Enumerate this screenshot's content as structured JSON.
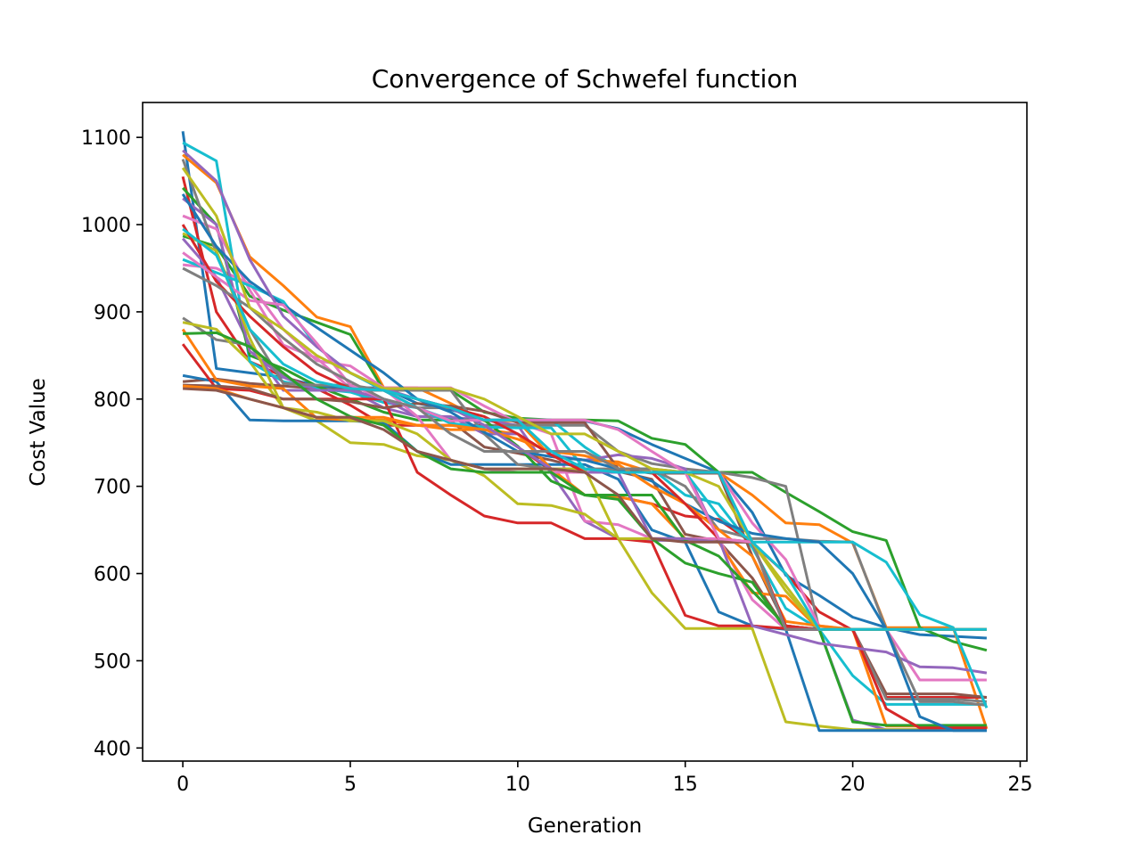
{
  "chart_data": {
    "type": "line",
    "title": "Convergence of Schwefel function",
    "xlabel": "Generation",
    "ylabel": "Cost Value",
    "xlim": [
      -1.2,
      25.2
    ],
    "ylim": [
      385,
      1140
    ],
    "xticks": [
      0,
      5,
      10,
      15,
      20,
      25
    ],
    "yticks": [
      400,
      500,
      600,
      700,
      800,
      900,
      1000,
      1100
    ],
    "grid": false,
    "legend": "none",
    "x": [
      0,
      1,
      2,
      3,
      4,
      5,
      6,
      7,
      8,
      9,
      10,
      11,
      12,
      13,
      14,
      15,
      16,
      17,
      18,
      19,
      20,
      21,
      22,
      23,
      24
    ],
    "palette": [
      "#1f77b4",
      "#ff7f0e",
      "#2ca02c",
      "#d62728",
      "#9467bd",
      "#8c564b",
      "#e377c2",
      "#7f7f7f",
      "#bcbd22",
      "#17becf"
    ],
    "series": [
      {
        "values": [
          1107,
          835,
          830,
          825,
          815,
          813,
          813,
          795,
          788,
          776,
          776,
          775,
          775,
          766,
          748,
          732,
          716,
          670,
          598,
          575,
          550,
          538,
          530,
          528,
          526
        ]
      },
      {
        "values": [
          1080,
          1048,
          963,
          930,
          894,
          883,
          813,
          813,
          795,
          775,
          775,
          734,
          730,
          728,
          716,
          716,
          716,
          690,
          658,
          656,
          635,
          538,
          538,
          538,
          422
        ]
      },
      {
        "values": [
          987,
          975,
          918,
          902,
          888,
          874,
          810,
          810,
          810,
          785,
          778,
          776,
          776,
          775,
          755,
          748,
          716,
          716,
          693,
          671,
          648,
          638,
          538,
          522,
          512
        ]
      },
      {
        "values": [
          1055,
          900,
          843,
          826,
          812,
          793,
          770,
          770,
          770,
          770,
          745,
          718,
          690,
          688,
          680,
          666,
          662,
          635,
          600,
          556,
          535,
          458,
          458,
          458,
          458
        ]
      },
      {
        "values": [
          984,
          940,
          862,
          810,
          810,
          810,
          790,
          780,
          779,
          776,
          770,
          715,
          660,
          640,
          638,
          638,
          638,
          636,
          536,
          536,
          432,
          421,
          421,
          421,
          421
        ]
      },
      {
        "values": [
          820,
          823,
          818,
          815,
          812,
          810,
          800,
          790,
          775,
          745,
          738,
          730,
          720,
          717,
          708,
          645,
          637,
          595,
          536,
          536,
          536,
          462,
          462,
          462,
          458
        ]
      },
      {
        "values": [
          954,
          950,
          932,
          880,
          844,
          838,
          813,
          813,
          813,
          792,
          773,
          760,
          660,
          656,
          640,
          640,
          640,
          570,
          536,
          536,
          536,
          536,
          478,
          478,
          478
        ]
      },
      {
        "values": [
          893,
          868,
          862,
          826,
          810,
          810,
          810,
          790,
          790,
          770,
          770,
          770,
          770,
          740,
          726,
          720,
          716,
          710,
          700,
          536,
          536,
          456,
          456,
          456,
          453
        ]
      },
      {
        "values": [
          888,
          880,
          843,
          790,
          775,
          750,
          748,
          735,
          730,
          712,
          680,
          678,
          668,
          640,
          578,
          537,
          537,
          537,
          430,
          425,
          421,
          421,
          421,
          421,
          421
        ]
      },
      {
        "values": [
          1094,
          1073,
          843,
          820,
          812,
          808,
          796,
          790,
          776,
          776,
          776,
          776,
          745,
          720,
          720,
          690,
          680,
          630,
          560,
          536,
          483,
          450,
          450,
          450,
          450
        ]
      },
      {
        "values": [
          827,
          820,
          776,
          775,
          775,
          775,
          773,
          740,
          725,
          725,
          725,
          725,
          725,
          708,
          650,
          636,
          556,
          540,
          536,
          420,
          420,
          420,
          420,
          420,
          420
        ]
      },
      {
        "values": [
          880,
          822,
          815,
          812,
          778,
          776,
          776,
          770,
          765,
          765,
          760,
          720,
          690,
          688,
          680,
          640,
          636,
          578,
          574,
          536,
          536,
          425,
          425,
          425,
          425
        ]
      },
      {
        "values": [
          1042,
          1000,
          850,
          835,
          815,
          800,
          785,
          776,
          776,
          776,
          746,
          706,
          690,
          685,
          640,
          612,
          600,
          590,
          536,
          536,
          430,
          426,
          426,
          426,
          426
        ]
      },
      {
        "values": [
          863,
          812,
          810,
          800,
          800,
          800,
          800,
          716,
          690,
          666,
          658,
          658,
          640,
          640,
          636,
          552,
          540,
          540,
          537,
          536,
          536,
          445,
          423,
          423,
          423
        ]
      },
      {
        "values": [
          1030,
          1000,
          855,
          825,
          810,
          810,
          800,
          780,
          780,
          760,
          760,
          736,
          730,
          736,
          732,
          720,
          640,
          540,
          530,
          520,
          515,
          510,
          493,
          492,
          486
        ]
      },
      {
        "values": [
          816,
          815,
          812,
          800,
          800,
          797,
          790,
          795,
          792,
          786,
          773,
          773,
          773,
          720,
          715,
          715,
          715,
          620,
          540,
          536,
          536,
          536,
          536,
          536,
          536
        ]
      },
      {
        "values": [
          1010,
          995,
          925,
          862,
          847,
          812,
          812,
          780,
          730,
          720,
          716,
          716,
          716,
          716,
          716,
          716,
          716,
          658,
          616,
          540,
          536,
          536,
          536,
          536,
          536
        ]
      },
      {
        "values": [
          1075,
          968,
          880,
          818,
          816,
          816,
          810,
          810,
          810,
          760,
          725,
          720,
          720,
          720,
          720,
          700,
          650,
          640,
          640,
          637,
          636,
          536,
          453,
          453,
          449
        ]
      },
      {
        "values": [
          990,
          970,
          870,
          790,
          785,
          775,
          775,
          760,
          730,
          720,
          720,
          720,
          720,
          640,
          640,
          640,
          636,
          636,
          586,
          536,
          536,
          536,
          536,
          536,
          536
        ]
      },
      {
        "values": [
          960,
          945,
          930,
          912,
          860,
          830,
          810,
          790,
          772,
          768,
          767,
          767,
          720,
          716,
          716,
          716,
          666,
          636,
          636,
          636,
          636,
          613,
          553,
          538,
          446
        ]
      },
      {
        "values": [
          1035,
          975,
          935,
          908,
          882,
          856,
          830,
          800,
          785,
          762,
          740,
          734,
          730,
          720,
          706,
          680,
          660,
          646,
          640,
          636,
          600,
          536,
          436,
          420,
          420
        ]
      },
      {
        "values": [
          815,
          812,
          800,
          790,
          779,
          779,
          779,
          770,
          770,
          765,
          754,
          740,
          735,
          725,
          700,
          680,
          650,
          620,
          545,
          540,
          536,
          536,
          536,
          536,
          536
        ]
      },
      {
        "values": [
          875,
          876,
          860,
          830,
          800,
          780,
          770,
          740,
          720,
          716,
          716,
          716,
          690,
          690,
          690,
          638,
          620,
          580,
          540,
          536,
          536,
          536,
          536,
          536,
          536
        ]
      },
      {
        "values": [
          1000,
          935,
          895,
          860,
          830,
          812,
          810,
          800,
          790,
          780,
          760,
          736,
          716,
          716,
          716,
          680,
          640,
          636,
          540,
          536,
          536,
          536,
          536,
          536,
          536
        ]
      },
      {
        "values": [
          1085,
          1050,
          960,
          895,
          860,
          830,
          812,
          800,
          790,
          770,
          745,
          720,
          716,
          716,
          640,
          640,
          636,
          636,
          536,
          536,
          536,
          536,
          536,
          536,
          536
        ]
      },
      {
        "values": [
          812,
          810,
          800,
          790,
          779,
          779,
          765,
          740,
          730,
          720,
          720,
          720,
          716,
          690,
          640,
          636,
          636,
          636,
          536,
          536,
          536,
          536,
          536,
          536,
          536
        ]
      },
      {
        "values": [
          968,
          940,
          913,
          908,
          864,
          816,
          800,
          790,
          775,
          776,
          776,
          776,
          776,
          765,
          740,
          716,
          640,
          636,
          536,
          536,
          536,
          536,
          536,
          536,
          536
        ]
      },
      {
        "values": [
          950,
          930,
          905,
          870,
          840,
          820,
          800,
          790,
          760,
          740,
          740,
          740,
          740,
          720,
          720,
          716,
          716,
          636,
          536,
          536,
          536,
          536,
          536,
          536,
          536
        ]
      },
      {
        "values": [
          1065,
          1010,
          905,
          880,
          850,
          830,
          812,
          812,
          812,
          800,
          780,
          760,
          760,
          740,
          720,
          716,
          700,
          636,
          580,
          536,
          536,
          536,
          536,
          536,
          536
        ]
      },
      {
        "values": [
          995,
          965,
          880,
          840,
          820,
          812,
          810,
          800,
          790,
          776,
          776,
          740,
          720,
          716,
          716,
          716,
          716,
          636,
          600,
          536,
          536,
          536,
          536,
          536,
          536
        ]
      }
    ]
  }
}
